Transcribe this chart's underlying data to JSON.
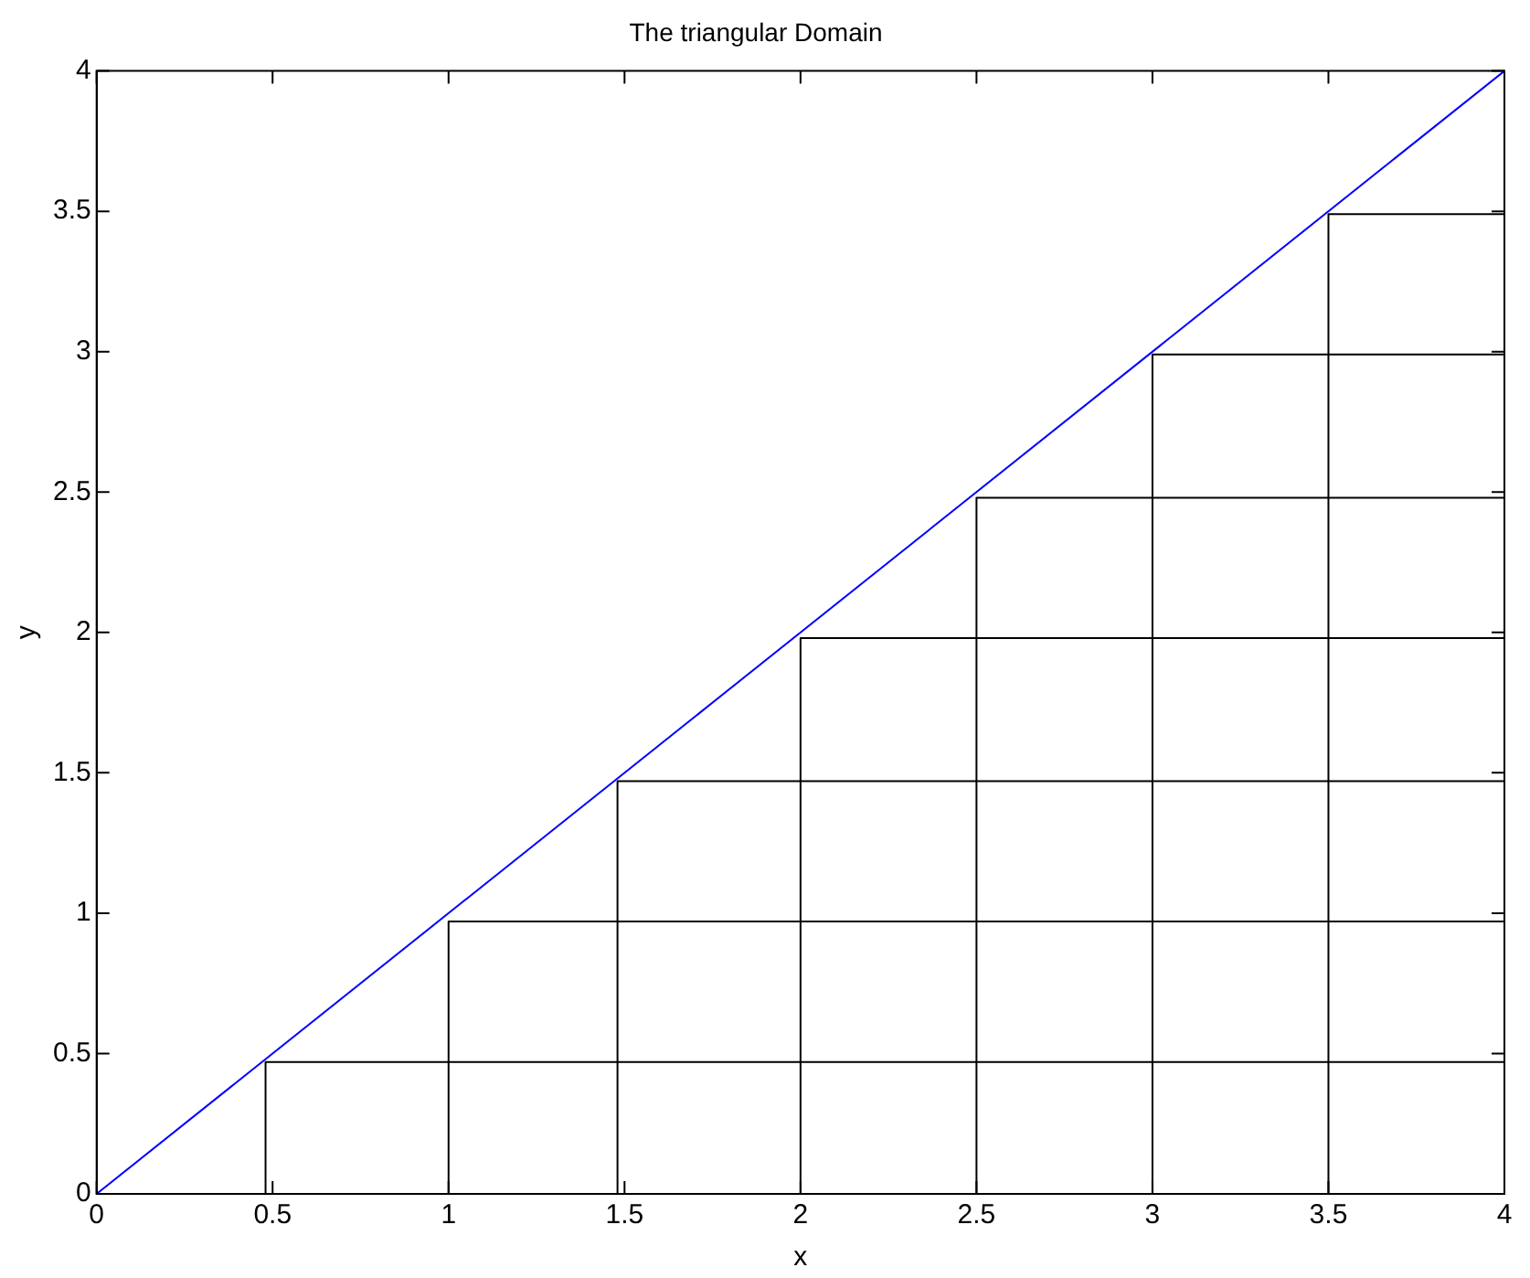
{
  "chart_data": {
    "type": "line",
    "title": "The triangular Domain",
    "xlabel": "x",
    "ylabel": "y",
    "xlim": [
      0,
      4
    ],
    "ylim": [
      0,
      4
    ],
    "xticks": [
      0,
      0.5,
      1,
      1.5,
      2,
      2.5,
      3,
      3.5,
      4
    ],
    "yticks": [
      0,
      0.5,
      1,
      1.5,
      2,
      2.5,
      3,
      3.5,
      4
    ],
    "grid": false,
    "legend": false,
    "marker": "none",
    "line_style": "solid",
    "series": [
      {
        "color": "#0000ff",
        "x": [
          0,
          4
        ],
        "values": [
          0,
          4
        ]
      },
      {
        "color": "#000000",
        "x": [
          0.48,
          0.48,
          4
        ],
        "values": [
          0,
          0.47,
          0.47
        ]
      },
      {
        "color": "#000000",
        "x": [
          1,
          1,
          4
        ],
        "values": [
          0,
          0.97,
          0.97
        ]
      },
      {
        "color": "#000000",
        "x": [
          1.48,
          1.48,
          4
        ],
        "values": [
          0,
          1.47,
          1.47
        ]
      },
      {
        "color": "#000000",
        "x": [
          2,
          2,
          4
        ],
        "values": [
          0,
          1.98,
          1.98
        ]
      },
      {
        "color": "#000000",
        "x": [
          2.5,
          2.5,
          4
        ],
        "values": [
          0,
          2.48,
          2.48
        ]
      },
      {
        "color": "#000000",
        "x": [
          3,
          3,
          4
        ],
        "values": [
          0,
          2.99,
          2.99
        ]
      },
      {
        "color": "#000000",
        "x": [
          3.5,
          3.5,
          4
        ],
        "values": [
          0,
          3.49,
          3.49
        ]
      }
    ]
  }
}
